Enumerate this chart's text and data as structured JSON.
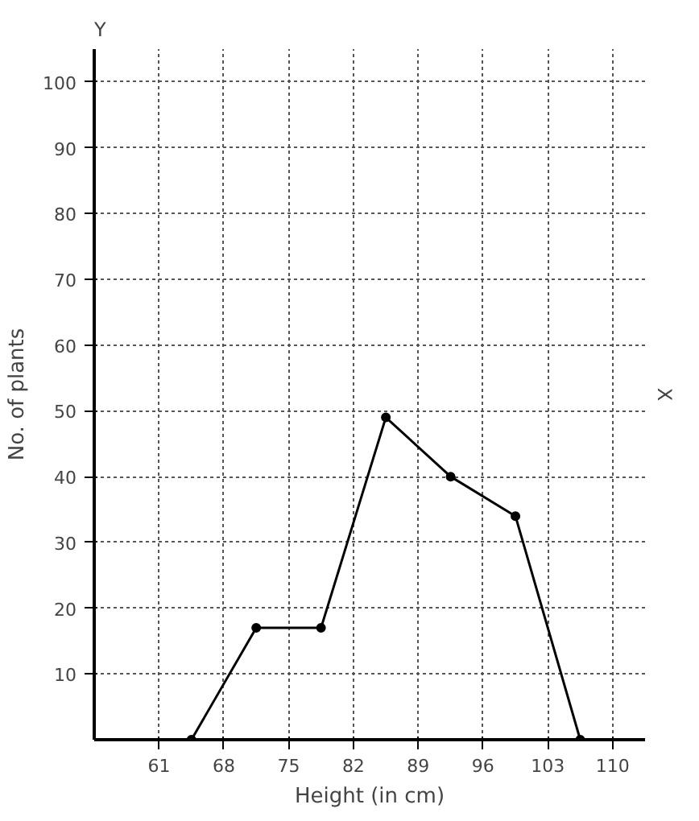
{
  "chart_data": {
    "type": "line",
    "xlabel": "Height (in cm)",
    "ylabel": "No. of plants",
    "x": [
      64.5,
      71.5,
      78.5,
      85.5,
      92.5,
      99.5,
      106.5
    ],
    "series": [
      {
        "color": "#000000",
        "values": [
          0,
          17,
          17,
          49,
          40,
          34,
          0
        ]
      }
    ],
    "xlim": [
      54,
      113.5
    ],
    "ylim": [
      0,
      105
    ],
    "xticks": [
      61,
      68,
      75,
      82,
      89,
      96,
      103,
      110
    ],
    "yticks": [
      10,
      20,
      30,
      40,
      50,
      60,
      70,
      80,
      90,
      100
    ],
    "annotations": [
      "Y",
      "X"
    ],
    "grid": true,
    "marker": "circle",
    "line_style": "solid"
  }
}
